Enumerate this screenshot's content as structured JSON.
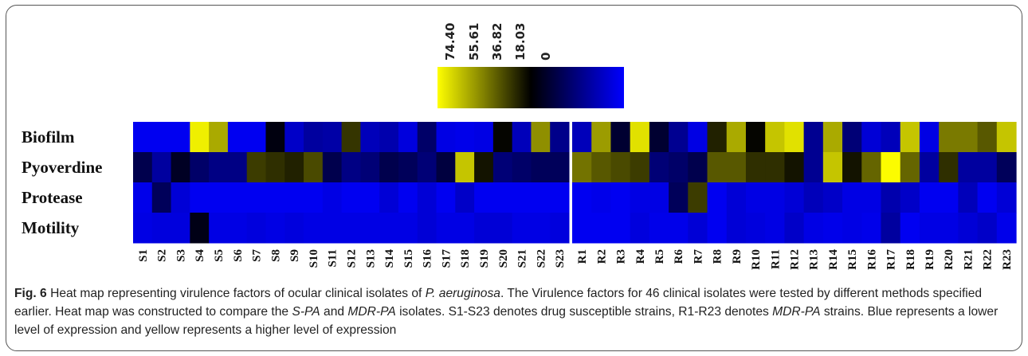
{
  "chart_data": {
    "type": "heatmap",
    "rows": [
      "Biofilm",
      "Pyoverdine",
      "Protease",
      "Motility"
    ],
    "columns": [
      "S1",
      "S2",
      "S3",
      "S4",
      "S5",
      "S6",
      "S7",
      "S8",
      "S9",
      "S10",
      "S11",
      "S12",
      "S13",
      "S14",
      "S15",
      "S16",
      "S17",
      "S18",
      "S19",
      "S20",
      "S21",
      "S22",
      "S23",
      "R1",
      "R2",
      "R3",
      "R4",
      "R5",
      "R6",
      "R7",
      "R8",
      "R9",
      "R10",
      "R11",
      "R12",
      "R13",
      "R14",
      "R15",
      "R16",
      "R17",
      "R18",
      "R19",
      "R20",
      "R21",
      "R22",
      "R23"
    ],
    "values": [
      [
        2,
        2,
        2,
        72,
        62,
        2,
        2,
        35,
        8,
        14,
        13,
        45,
        10,
        12,
        5,
        22,
        4,
        3,
        4,
        38,
        10,
        58,
        17,
        10,
        60,
        30,
        70,
        30,
        16,
        4,
        42,
        62,
        38,
        66,
        70,
        16,
        62,
        20,
        6,
        10,
        66,
        4,
        55,
        55,
        50,
        66
      ],
      [
        26,
        14,
        32,
        22,
        18,
        18,
        46,
        44,
        42,
        48,
        26,
        18,
        20,
        26,
        24,
        20,
        28,
        66,
        40,
        20,
        22,
        24,
        24,
        54,
        50,
        48,
        46,
        20,
        22,
        26,
        50,
        50,
        44,
        44,
        40,
        16,
        66,
        40,
        52,
        74,
        52,
        14,
        44,
        14,
        14,
        24
      ],
      [
        3,
        24,
        6,
        2,
        2,
        2,
        2,
        2,
        2,
        2,
        4,
        2,
        2,
        6,
        2,
        6,
        2,
        8,
        2,
        2,
        2,
        2,
        2,
        2,
        3,
        2,
        4,
        4,
        24,
        46,
        2,
        6,
        4,
        4,
        6,
        10,
        8,
        4,
        4,
        12,
        8,
        2,
        2,
        10,
        2,
        6
      ],
      [
        4,
        5,
        5,
        34,
        4,
        4,
        5,
        4,
        5,
        4,
        4,
        4,
        4,
        4,
        4,
        6,
        4,
        4,
        6,
        6,
        4,
        4,
        5,
        2,
        2,
        2,
        5,
        3,
        3,
        6,
        2,
        6,
        5,
        4,
        8,
        4,
        3,
        4,
        3,
        14,
        2,
        4,
        4,
        6,
        8,
        3
      ]
    ],
    "vmin": 0,
    "vmax": 74.4,
    "colorscale": {
      "low": "#0000ff",
      "mid": "#000000",
      "high": "#ffff00"
    },
    "legend": {
      "ticks": [
        "74.40",
        "55.61",
        "36.82",
        "18.03",
        "0"
      ],
      "placement": "top-center"
    },
    "group_split_after": "S23"
  },
  "caption": {
    "fig_label": "Fig. 6",
    "text_1": " Heat map representing virulence factors of ocular clinical isolates of ",
    "species": "P. aeruginosa",
    "text_2": ". The Virulence factors for 46 clinical isolates were tested by different methods specified earlier. Heat map was constructed to compare the ",
    "spa": "S-PA",
    "text_3": " and ",
    "mdrpa": "MDR-PA",
    "text_4": " isolates. S1-S23 denotes drug susceptible strains, R1-R23 denotes ",
    "mdrpa_2": "MDR-PA",
    "text_5": " strains. Blue represents a lower level of expression and yellow represents a higher level of expression"
  }
}
